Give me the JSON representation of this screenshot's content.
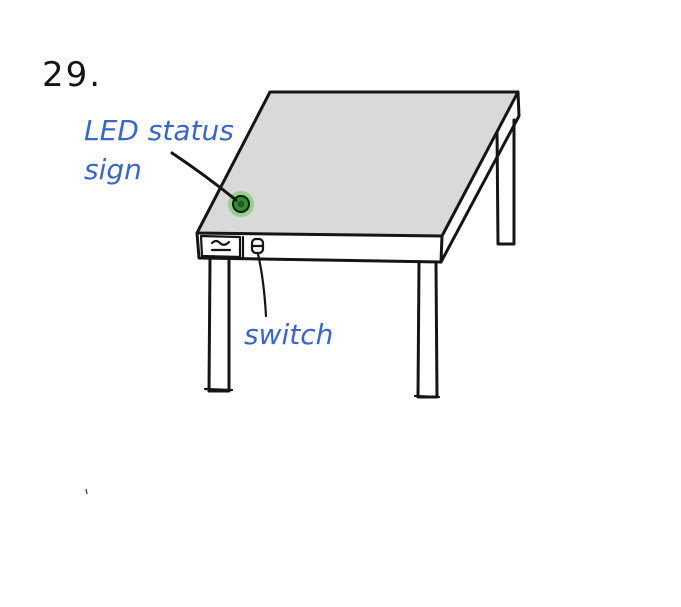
{
  "number_label": "29.",
  "labels": {
    "led": [
      "LED status",
      "sign"
    ],
    "switch": "switch"
  },
  "colors": {
    "ink": "#151515",
    "annotation": "#3a66c8",
    "tabletop": "#d9d9d9",
    "led_glow": "#57c94b",
    "led_core": "#1f5e21"
  },
  "icons": {
    "power_socket": "power-socket-icon",
    "led": "led-indicator-icon",
    "switch": "switch-icon"
  }
}
